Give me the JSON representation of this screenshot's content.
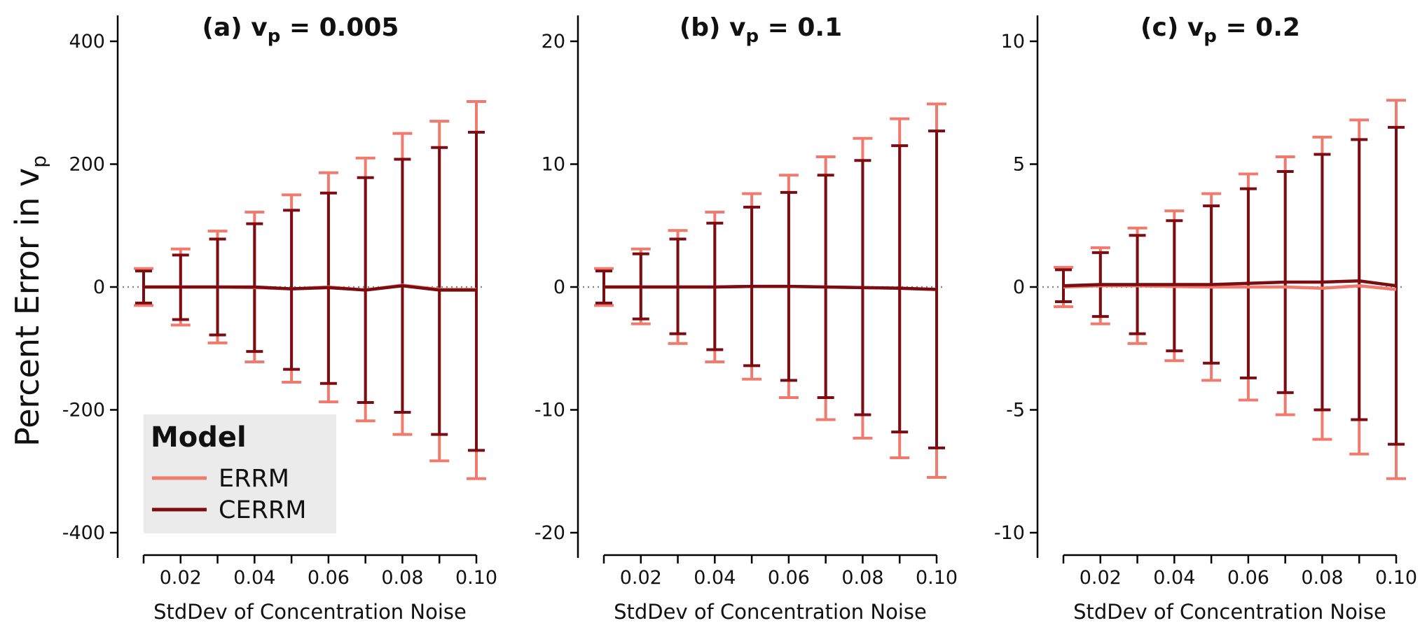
{
  "figure": {
    "ylabel_main": "Percent Error in v",
    "ylabel_sub": "p"
  },
  "legend": {
    "title": "Model",
    "items": [
      {
        "label": "ERRM",
        "color": "#f07a6e"
      },
      {
        "label": "CERRM",
        "color": "#7a0c12"
      }
    ]
  },
  "chart_data": [
    {
      "type": "line",
      "title_prefix": "(a) v",
      "title_sub": "p",
      "title_suffix": " = 0.005",
      "xlabel": "StdDev of Concentration Noise",
      "ylabel": "Percent Error in vp",
      "x": [
        0.01,
        0.02,
        0.03,
        0.04,
        0.05,
        0.06,
        0.07,
        0.08,
        0.09,
        0.1
      ],
      "xlim": [
        0.01,
        0.1
      ],
      "xticks": [
        0.02,
        0.04,
        0.06,
        0.08,
        0.1
      ],
      "xtick_labels": [
        "0.02",
        "0.04",
        "0.06",
        "0.08",
        "0.10"
      ],
      "ylim": [
        -400,
        400
      ],
      "yticks": [
        -400,
        -200,
        0,
        200,
        400
      ],
      "ytick_labels": [
        "-400",
        "-200",
        "0",
        "200",
        "400"
      ],
      "reference_line": 0,
      "series": [
        {
          "name": "ERRM",
          "color": "#f07a6e",
          "mean": [
            0,
            0,
            0,
            -1,
            -3,
            0,
            -5,
            3,
            -4,
            -4
          ],
          "upper": [
            30,
            62,
            91,
            122,
            150,
            186,
            210,
            250,
            270,
            302
          ],
          "lower": [
            -30,
            -62,
            -91,
            -122,
            -155,
            -187,
            -218,
            -240,
            -283,
            -312
          ]
        },
        {
          "name": "CERRM",
          "color": "#7a0c12",
          "mean": [
            0,
            0,
            0,
            0,
            -3,
            -1,
            -5,
            2,
            -5,
            -5
          ],
          "upper": [
            26,
            52,
            78,
            103,
            125,
            153,
            178,
            208,
            227,
            252
          ],
          "lower": [
            -26,
            -53,
            -78,
            -105,
            -134,
            -157,
            -188,
            -204,
            -240,
            -266
          ]
        }
      ]
    },
    {
      "type": "line",
      "title_prefix": "(b) v",
      "title_sub": "p",
      "title_suffix": " = 0.1",
      "xlabel": "StdDev of Concentration Noise",
      "ylabel": "Percent Error in vp",
      "x": [
        0.01,
        0.02,
        0.03,
        0.04,
        0.05,
        0.06,
        0.07,
        0.08,
        0.09,
        0.1
      ],
      "xlim": [
        0.01,
        0.1
      ],
      "xticks": [
        0.02,
        0.04,
        0.06,
        0.08,
        0.1
      ],
      "xtick_labels": [
        "0.02",
        "0.04",
        "0.06",
        "0.08",
        "0.10"
      ],
      "ylim": [
        -20,
        20
      ],
      "yticks": [
        -20,
        -10,
        0,
        10,
        20
      ],
      "ytick_labels": [
        "-20",
        "-10",
        "0",
        "10",
        "20"
      ],
      "reference_line": 0,
      "series": [
        {
          "name": "ERRM",
          "color": "#f07a6e",
          "mean": [
            0,
            0,
            0,
            0,
            0.05,
            0.05,
            0,
            -0.05,
            -0.1,
            -0.2
          ],
          "upper": [
            1.5,
            3.1,
            4.6,
            6.1,
            7.6,
            9.1,
            10.6,
            12.1,
            13.7,
            14.9
          ],
          "lower": [
            -1.5,
            -3.0,
            -4.6,
            -6.1,
            -7.5,
            -9.0,
            -10.8,
            -12.3,
            -13.9,
            -15.5
          ]
        },
        {
          "name": "CERRM",
          "color": "#7a0c12",
          "mean": [
            0,
            0,
            0,
            0,
            0.05,
            0.05,
            0,
            -0.05,
            -0.1,
            -0.2
          ],
          "upper": [
            1.3,
            2.7,
            3.9,
            5.2,
            6.5,
            7.7,
            9.1,
            10.3,
            11.5,
            12.7
          ],
          "lower": [
            -1.3,
            -2.6,
            -3.8,
            -5.1,
            -6.4,
            -7.6,
            -9.0,
            -10.4,
            -11.8,
            -13.1
          ]
        }
      ]
    },
    {
      "type": "line",
      "title_prefix": "(c) v",
      "title_sub": "p",
      "title_suffix": " = 0.2",
      "xlabel": "StdDev of Concentration Noise",
      "ylabel": "Percent Error in vp",
      "x": [
        0.01,
        0.02,
        0.03,
        0.04,
        0.05,
        0.06,
        0.07,
        0.08,
        0.09,
        0.1
      ],
      "xlim": [
        0.01,
        0.1
      ],
      "xticks": [
        0.02,
        0.04,
        0.06,
        0.08,
        0.1
      ],
      "xtick_labels": [
        "0.02",
        "0.04",
        "0.06",
        "0.08",
        "0.10"
      ],
      "ylim": [
        -10,
        10
      ],
      "yticks": [
        -10,
        -5,
        0,
        5,
        10
      ],
      "ytick_labels": [
        "-10",
        "-5",
        "0",
        "5",
        "10"
      ],
      "reference_line": 0,
      "series": [
        {
          "name": "ERRM",
          "color": "#f07a6e",
          "mean": [
            0,
            0.05,
            0.05,
            0.02,
            0,
            0,
            0,
            -0.05,
            0.05,
            -0.1
          ],
          "upper": [
            0.8,
            1.6,
            2.4,
            3.1,
            3.8,
            4.6,
            5.3,
            6.1,
            6.8,
            7.6
          ],
          "lower": [
            -0.8,
            -1.5,
            -2.3,
            -3.0,
            -3.8,
            -4.6,
            -5.2,
            -6.2,
            -6.8,
            -7.8
          ]
        },
        {
          "name": "CERRM",
          "color": "#7a0c12",
          "mean": [
            0.05,
            0.1,
            0.1,
            0.1,
            0.1,
            0.15,
            0.2,
            0.2,
            0.25,
            0.05
          ],
          "upper": [
            0.7,
            1.4,
            2.1,
            2.7,
            3.3,
            4.0,
            4.7,
            5.4,
            6.0,
            6.5
          ],
          "lower": [
            -0.6,
            -1.2,
            -1.9,
            -2.6,
            -3.1,
            -3.7,
            -4.3,
            -5.0,
            -5.4,
            -6.4
          ]
        }
      ]
    }
  ]
}
